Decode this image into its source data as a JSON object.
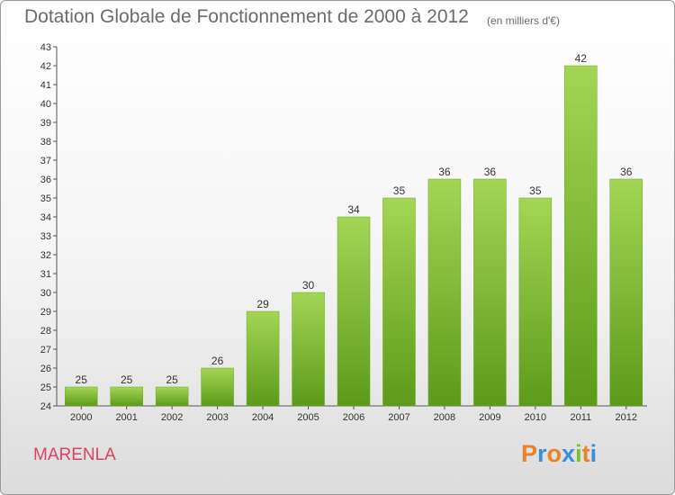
{
  "chart_data": {
    "type": "bar",
    "title": "Dotation Globale de Fonctionnement de 2000 à 2012",
    "subtitle": "(en milliers d'€)",
    "categories": [
      "2000",
      "2001",
      "2002",
      "2003",
      "2004",
      "2005",
      "2006",
      "2007",
      "2008",
      "2009",
      "2010",
      "2011",
      "2012"
    ],
    "values": [
      25,
      25,
      25,
      26,
      29,
      30,
      34,
      35,
      36,
      36,
      35,
      42,
      36
    ],
    "ylim": [
      24,
      43
    ],
    "yticks": [
      24,
      25,
      26,
      27,
      28,
      29,
      30,
      31,
      32,
      33,
      34,
      35,
      36,
      37,
      38,
      39,
      40,
      41,
      42,
      43
    ],
    "grid": false,
    "bar_color": "#7bbf2c",
    "bar_color_light": "#a3d654",
    "bar_color_dark": "#5d9a1a"
  },
  "footer": {
    "commune": "MARENLA",
    "logo": "Proxiti",
    "commune_color": "#d9455f"
  }
}
